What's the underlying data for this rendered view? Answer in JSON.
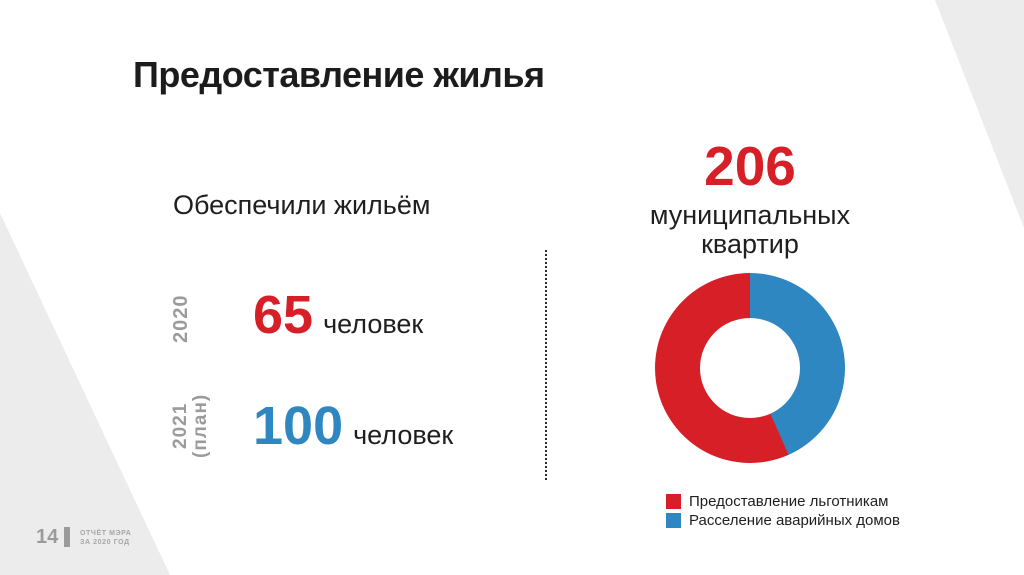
{
  "slide": {
    "title": "Предоставление жилья",
    "page_number": "14",
    "footer_line1": "ОТЧЁТ МЭРА",
    "footer_line2": "ЗА 2020 ГОД"
  },
  "left_panel": {
    "subtitle": "Обеспечили жильём",
    "rows": [
      {
        "year_label": "2020",
        "year_sublabel": "",
        "value": "65",
        "unit": "человек",
        "value_color": "#d61f26"
      },
      {
        "year_label": "2021",
        "year_sublabel": "(план)",
        "value": "100",
        "unit": "человек",
        "value_color": "#2e87c0"
      }
    ]
  },
  "right_panel": {
    "headline_number": "206",
    "headline_caption_line1": "муниципальных",
    "headline_caption_line2": "квартир"
  },
  "chart_data": {
    "type": "pie",
    "variant": "donut",
    "title": "206 муниципальных квартир",
    "total_label": "206",
    "total_value": 206,
    "segments": [
      {
        "label": "Предоставление льготникам",
        "color": "#d61f26",
        "share_pct": 57,
        "start_deg": 156,
        "end_deg": 360
      },
      {
        "label": "Расселение аварийных домов",
        "color": "#2e87c0",
        "share_pct": 43,
        "start_deg": 0,
        "end_deg": 156
      }
    ],
    "legend_position": "bottom-left"
  },
  "colors": {
    "accent_red": "#d61f26",
    "accent_blue": "#2e87c0",
    "muted_gray": "#9b9b9b",
    "corner_gray": "#ececec",
    "text_dark": "#1f1f1f"
  }
}
